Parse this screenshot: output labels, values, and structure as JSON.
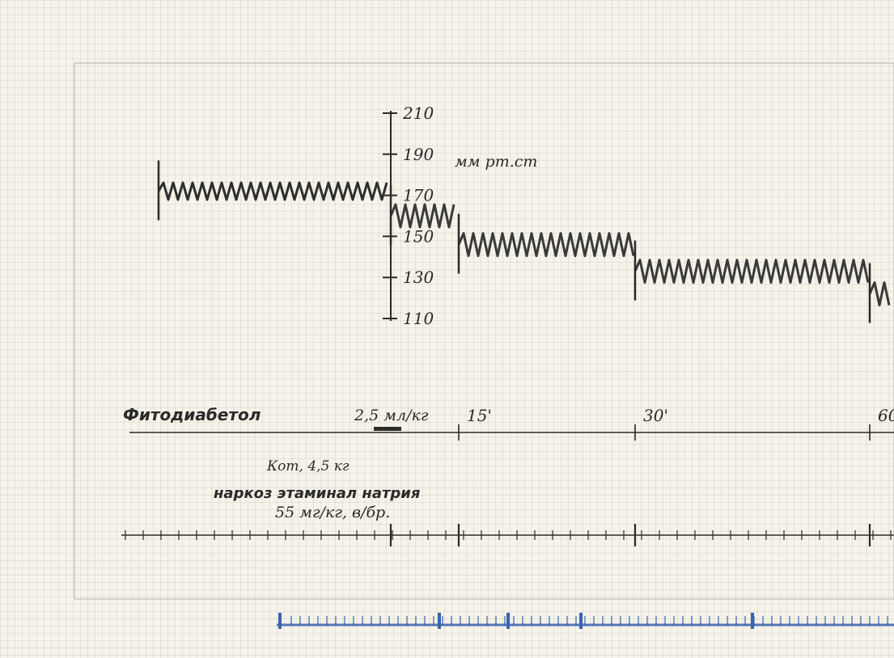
{
  "chart_data": {
    "type": "line",
    "title": "",
    "ylabel": "мм рт.ст",
    "ylim": [
      110,
      210
    ],
    "yticks": [
      "210",
      "190",
      "170",
      "150",
      "130",
      "110"
    ],
    "series": [
      {
        "segments": [
          {
            "x": [
              0,
              7
            ],
            "y_center": 172,
            "amplitude": 3
          },
          {
            "x": [
              7,
              15
            ],
            "y_center": 160,
            "amplitude": 4
          },
          {
            "x": [
              15,
              30
            ],
            "y_center": 146,
            "amplitude": 4
          },
          {
            "x": [
              30,
              60
            ],
            "y_center": 133,
            "amplitude": 4
          },
          {
            "x": [
              60,
              62
            ],
            "y_center": 122,
            "amplitude": 4
          }
        ]
      }
    ],
    "drug": {
      "name": "Фитодиабетол",
      "dose": "2,5 мл/кг"
    },
    "time_marks": [
      "15'",
      "30'",
      "60'"
    ],
    "notes": {
      "animal": "Кот, 4,5 кг",
      "anesthesia": "наркоз этаминал натрия",
      "anesthesia_dose": "55 мг/кг, в/бр."
    }
  },
  "colors": {
    "ink": "#2a2a2a",
    "pencil": "#3a3a3a",
    "blue_ink": "#3b63b0"
  }
}
